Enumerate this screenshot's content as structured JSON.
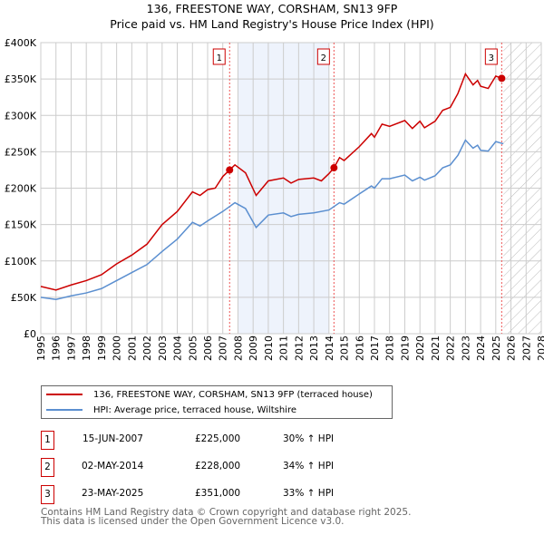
{
  "chart_data": {
    "type": "line",
    "title": "136, FREESTONE WAY, CORSHAM, SN13 9FP",
    "subtitle": "Price paid vs. HM Land Registry's House Price Index (HPI)",
    "xlim": [
      1995,
      2028
    ],
    "ylim": [
      0,
      400000
    ],
    "x_ticks": [
      "1995",
      "1996",
      "1997",
      "1998",
      "1999",
      "2000",
      "2001",
      "2002",
      "2003",
      "2004",
      "2005",
      "2006",
      "2007",
      "2008",
      "2009",
      "2010",
      "2011",
      "2012",
      "2013",
      "2014",
      "2015",
      "2016",
      "2017",
      "2018",
      "2019",
      "2020",
      "2021",
      "2022",
      "2023",
      "2024",
      "2025",
      "2026",
      "2027",
      "2028"
    ],
    "y_ticks": [
      {
        "v": 0,
        "label": "£0"
      },
      {
        "v": 50000,
        "label": "£50K"
      },
      {
        "v": 100000,
        "label": "£100K"
      },
      {
        "v": 150000,
        "label": "£150K"
      },
      {
        "v": 200000,
        "label": "£200K"
      },
      {
        "v": 250000,
        "label": "£250K"
      },
      {
        "v": 300000,
        "label": "£300K"
      },
      {
        "v": 350000,
        "label": "£350K"
      },
      {
        "v": 400000,
        "label": "£400K"
      }
    ],
    "grid": true,
    "shaded_period": [
      2008.0,
      2014.0
    ],
    "forecast_hatched_from": 2025.5,
    "series": [
      {
        "name": "136, FREESTONE WAY, CORSHAM, SN13 9FP (terraced house)",
        "color": "#cc0000",
        "x": [
          1995,
          1996,
          1997,
          1998,
          1999,
          2000,
          2001,
          2002,
          2003,
          2004,
          2005,
          2005.5,
          2006,
          2006.5,
          2007,
          2007.45,
          2007.8,
          2008.5,
          2009.2,
          2010,
          2011,
          2011.5,
          2012,
          2013,
          2013.5,
          2014,
          2014.33,
          2014.7,
          2015,
          2016,
          2016.8,
          2017,
          2017.5,
          2018,
          2019,
          2019.5,
          2020,
          2020.3,
          2021,
          2021.5,
          2022,
          2022.5,
          2023,
          2023.5,
          2023.8,
          2024,
          2024.5,
          2025,
          2025.39,
          2025.5
        ],
        "y": [
          65,
          60,
          67,
          73,
          81,
          96,
          108,
          123,
          150,
          168,
          195,
          190,
          198,
          200,
          216,
          225,
          232,
          221,
          190,
          210,
          214,
          207,
          212,
          214,
          210,
          220,
          228,
          242,
          238,
          257,
          275,
          270,
          288,
          285,
          293,
          282,
          292,
          283,
          292,
          307,
          311,
          330,
          357,
          342,
          348,
          340,
          337,
          354,
          351,
          350
        ]
      },
      {
        "name": "HPI: Average price, terraced house, Wiltshire",
        "color": "#5b8fd0",
        "x": [
          1995,
          1996,
          1997,
          1998,
          1999,
          2000,
          2001,
          2002,
          2003,
          2004,
          2005,
          2005.5,
          2006,
          2007,
          2007.8,
          2008.5,
          2009.2,
          2010,
          2011,
          2011.5,
          2012,
          2013,
          2014,
          2014.7,
          2015,
          2016,
          2016.8,
          2017,
          2017.5,
          2018,
          2019,
          2019.5,
          2020,
          2020.3,
          2021,
          2021.5,
          2022,
          2022.5,
          2023,
          2023.5,
          2023.8,
          2024,
          2024.5,
          2025,
          2025.5
        ],
        "y": [
          50,
          47,
          52,
          56,
          62,
          73,
          84,
          95,
          113,
          130,
          153,
          148,
          155,
          168,
          180,
          172,
          146,
          163,
          166,
          161,
          164,
          166,
          170,
          180,
          178,
          192,
          203,
          200,
          213,
          213,
          218,
          210,
          215,
          211,
          217,
          228,
          232,
          245,
          266,
          255,
          259,
          252,
          251,
          264,
          261
        ]
      }
    ],
    "y_units_multiplier": 1000,
    "sales": [
      {
        "n": "1",
        "x": 2007.45,
        "y": 225000,
        "date": "15-JUN-2007",
        "price": "£225,000",
        "hpi": "30% ↑ HPI"
      },
      {
        "n": "2",
        "x": 2014.33,
        "y": 228000,
        "date": "02-MAY-2014",
        "price": "£228,000",
        "hpi": "34% ↑ HPI"
      },
      {
        "n": "3",
        "x": 2025.39,
        "y": 351000,
        "date": "23-MAY-2025",
        "price": "£351,000",
        "hpi": "33% ↑ HPI"
      }
    ]
  },
  "legend": {
    "red": "136, FREESTONE WAY, CORSHAM, SN13 9FP (terraced house)",
    "blue": "HPI: Average price, terraced house, Wiltshire"
  },
  "footer": {
    "line1": "Contains HM Land Registry data © Crown copyright and database right 2025.",
    "line2": "This data is licensed under the Open Government Licence v3.0."
  }
}
